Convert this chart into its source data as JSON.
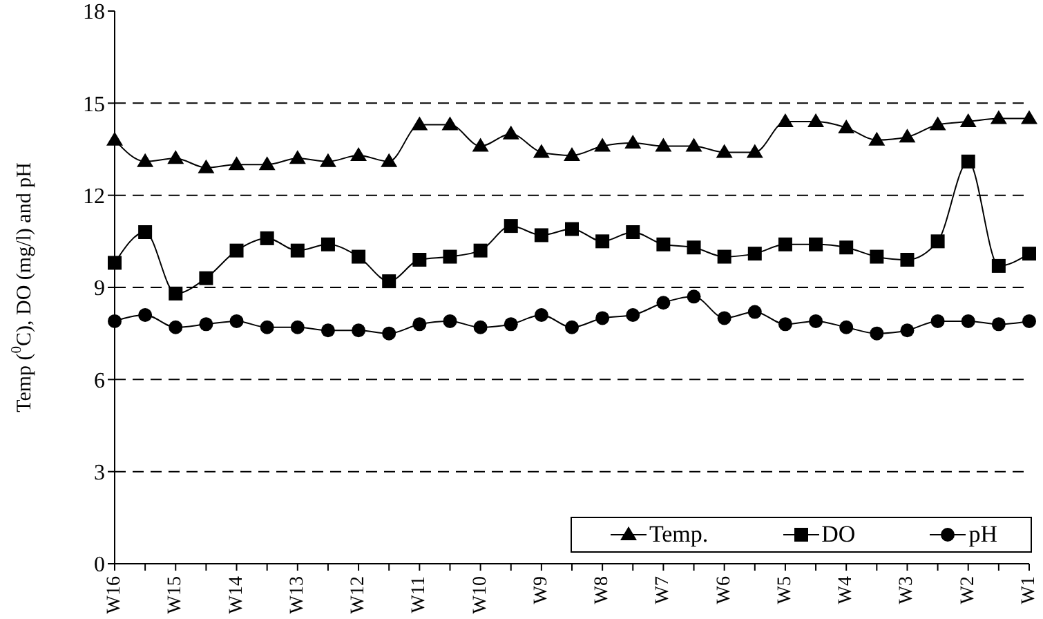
{
  "chart_data": {
    "type": "line",
    "ylabel": "Temp ($^{0}$C), DO (mg/l) and pH",
    "categories": [
      "W16",
      null,
      "W15",
      null,
      "W14",
      null,
      "W13",
      null,
      "W12",
      null,
      "W11",
      null,
      "W10",
      null,
      "W9",
      null,
      "W8",
      null,
      "W7",
      null,
      "W6",
      null,
      "W5",
      null,
      "W4",
      null,
      "W3",
      null,
      "W2",
      null,
      "W1"
    ],
    "series": [
      {
        "name": "Temp.",
        "color": "#000000",
        "marker": "triangle",
        "values": [
          13.8,
          13.1,
          13.2,
          12.9,
          13.0,
          13.0,
          13.2,
          13.1,
          13.3,
          13.1,
          14.3,
          14.3,
          13.6,
          14.0,
          13.4,
          13.3,
          13.6,
          13.7,
          13.6,
          13.6,
          13.4,
          13.4,
          14.4,
          14.4,
          14.2,
          13.8,
          13.9,
          14.3,
          14.4,
          14.5,
          14.5
        ]
      },
      {
        "name": "DO",
        "color": "#000000",
        "marker": "square",
        "values": [
          9.8,
          10.8,
          8.8,
          9.3,
          10.2,
          10.6,
          10.2,
          10.4,
          10.0,
          9.2,
          9.9,
          10.0,
          10.2,
          11.0,
          10.7,
          10.9,
          10.5,
          10.8,
          10.4,
          10.3,
          10.0,
          10.1,
          10.4,
          10.4,
          10.3,
          10.0,
          9.9,
          10.5,
          13.1,
          9.7,
          10.1
        ]
      },
      {
        "name": "pH",
        "color": "#000000",
        "marker": "circle",
        "values": [
          7.9,
          8.1,
          7.7,
          7.8,
          7.9,
          7.7,
          7.7,
          7.6,
          7.6,
          7.5,
          7.8,
          7.9,
          7.7,
          7.8,
          8.1,
          7.7,
          8.0,
          8.1,
          8.5,
          8.7,
          8.0,
          8.2,
          7.8,
          7.9,
          7.7,
          7.5,
          7.6,
          7.9,
          7.9,
          7.8,
          7.9
        ]
      }
    ],
    "ylim": [
      0,
      18
    ],
    "yticks": [
      0,
      3,
      6,
      9,
      12,
      15,
      18
    ],
    "grid": "y",
    "legend": "bottom right",
    "line_style": "solid"
  }
}
